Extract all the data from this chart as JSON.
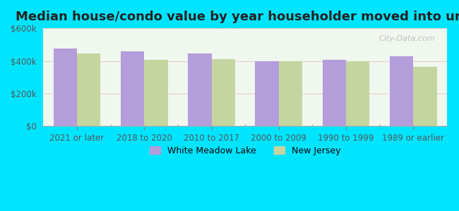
{
  "title": "Median house/condo value by year householder moved into unit",
  "categories": [
    "2021 or later",
    "2018 to 2020",
    "2010 to 2017",
    "2000 to 2009",
    "1990 to 1999",
    "1989 or earlier"
  ],
  "white_meadow_lake": [
    475000,
    460000,
    445000,
    400000,
    407000,
    430000
  ],
  "new_jersey": [
    445000,
    408000,
    410000,
    398000,
    397000,
    362000
  ],
  "color_wml": "#b39ddb",
  "color_nj": "#c5d5a0",
  "background_outer": "#00e5ff",
  "background_inner": "#f0f7ee",
  "ylim": [
    0,
    600000
  ],
  "yticks": [
    0,
    200000,
    400000,
    600000
  ],
  "ytick_labels": [
    "$0",
    "$200k",
    "$400k",
    "$600k"
  ],
  "legend_wml": "White Meadow Lake",
  "legend_nj": "New Jersey",
  "bar_width": 0.35,
  "title_fontsize": 13,
  "tick_fontsize": 8.5,
  "legend_fontsize": 9
}
